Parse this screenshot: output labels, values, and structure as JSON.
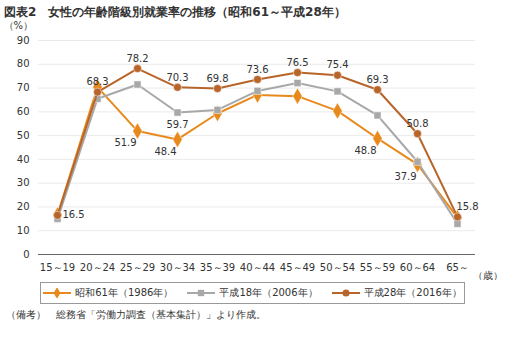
{
  "chart_data": {
    "type": "line",
    "title": "図表2　女性の年齢階級別就業率の推移（昭和61～平成28年）",
    "y_label": "（%）",
    "x_label": "（歳）",
    "note": "（備考）　総務省「労働力調査（基本集計）」より作成。",
    "categories": [
      "15～19",
      "20～24",
      "25～29",
      "30～34",
      "35～39",
      "40～44",
      "45～49",
      "50～54",
      "55～59",
      "60～64",
      "65～"
    ],
    "series": [
      {
        "name": "昭和61年（1986年）",
        "color": "#e8891c",
        "marker": "diamond",
        "line_style": "solid",
        "values": [
          16.6,
          70.4,
          51.9,
          48.4,
          59.3,
          67.1,
          66.6,
          60.4,
          48.8,
          37.9,
          15.5
        ],
        "value_labels": [
          null,
          null,
          "51.9",
          "48.4",
          null,
          null,
          null,
          null,
          "48.8",
          "37.9",
          null
        ]
      },
      {
        "name": "平成18年（2006年）",
        "color": "#a8a8a8",
        "marker": "square",
        "line_style": "solid",
        "values": [
          15.0,
          65.5,
          71.5,
          59.7,
          60.8,
          68.8,
          72.1,
          68.6,
          58.5,
          39.0,
          12.9
        ],
        "value_labels": [
          null,
          null,
          null,
          "59.7",
          null,
          null,
          null,
          null,
          null,
          null,
          null
        ]
      },
      {
        "name": "平成28年（2016年）",
        "color": "#b8652a",
        "marker": "circle",
        "line_style": "solid",
        "values": [
          16.5,
          68.3,
          78.2,
          70.3,
          69.8,
          73.6,
          76.5,
          75.4,
          69.3,
          50.8,
          15.8
        ],
        "value_labels": [
          "16.5",
          "68.3",
          "78.2",
          "70.3",
          "69.8",
          "73.6",
          "76.5",
          "75.4",
          "69.3",
          "50.8",
          "15.8"
        ]
      }
    ],
    "ylim": [
      0,
      90
    ],
    "yticks": [
      0,
      10,
      20,
      30,
      40,
      50,
      60,
      70,
      80,
      90
    ],
    "grid": true,
    "legend": "bottom"
  }
}
